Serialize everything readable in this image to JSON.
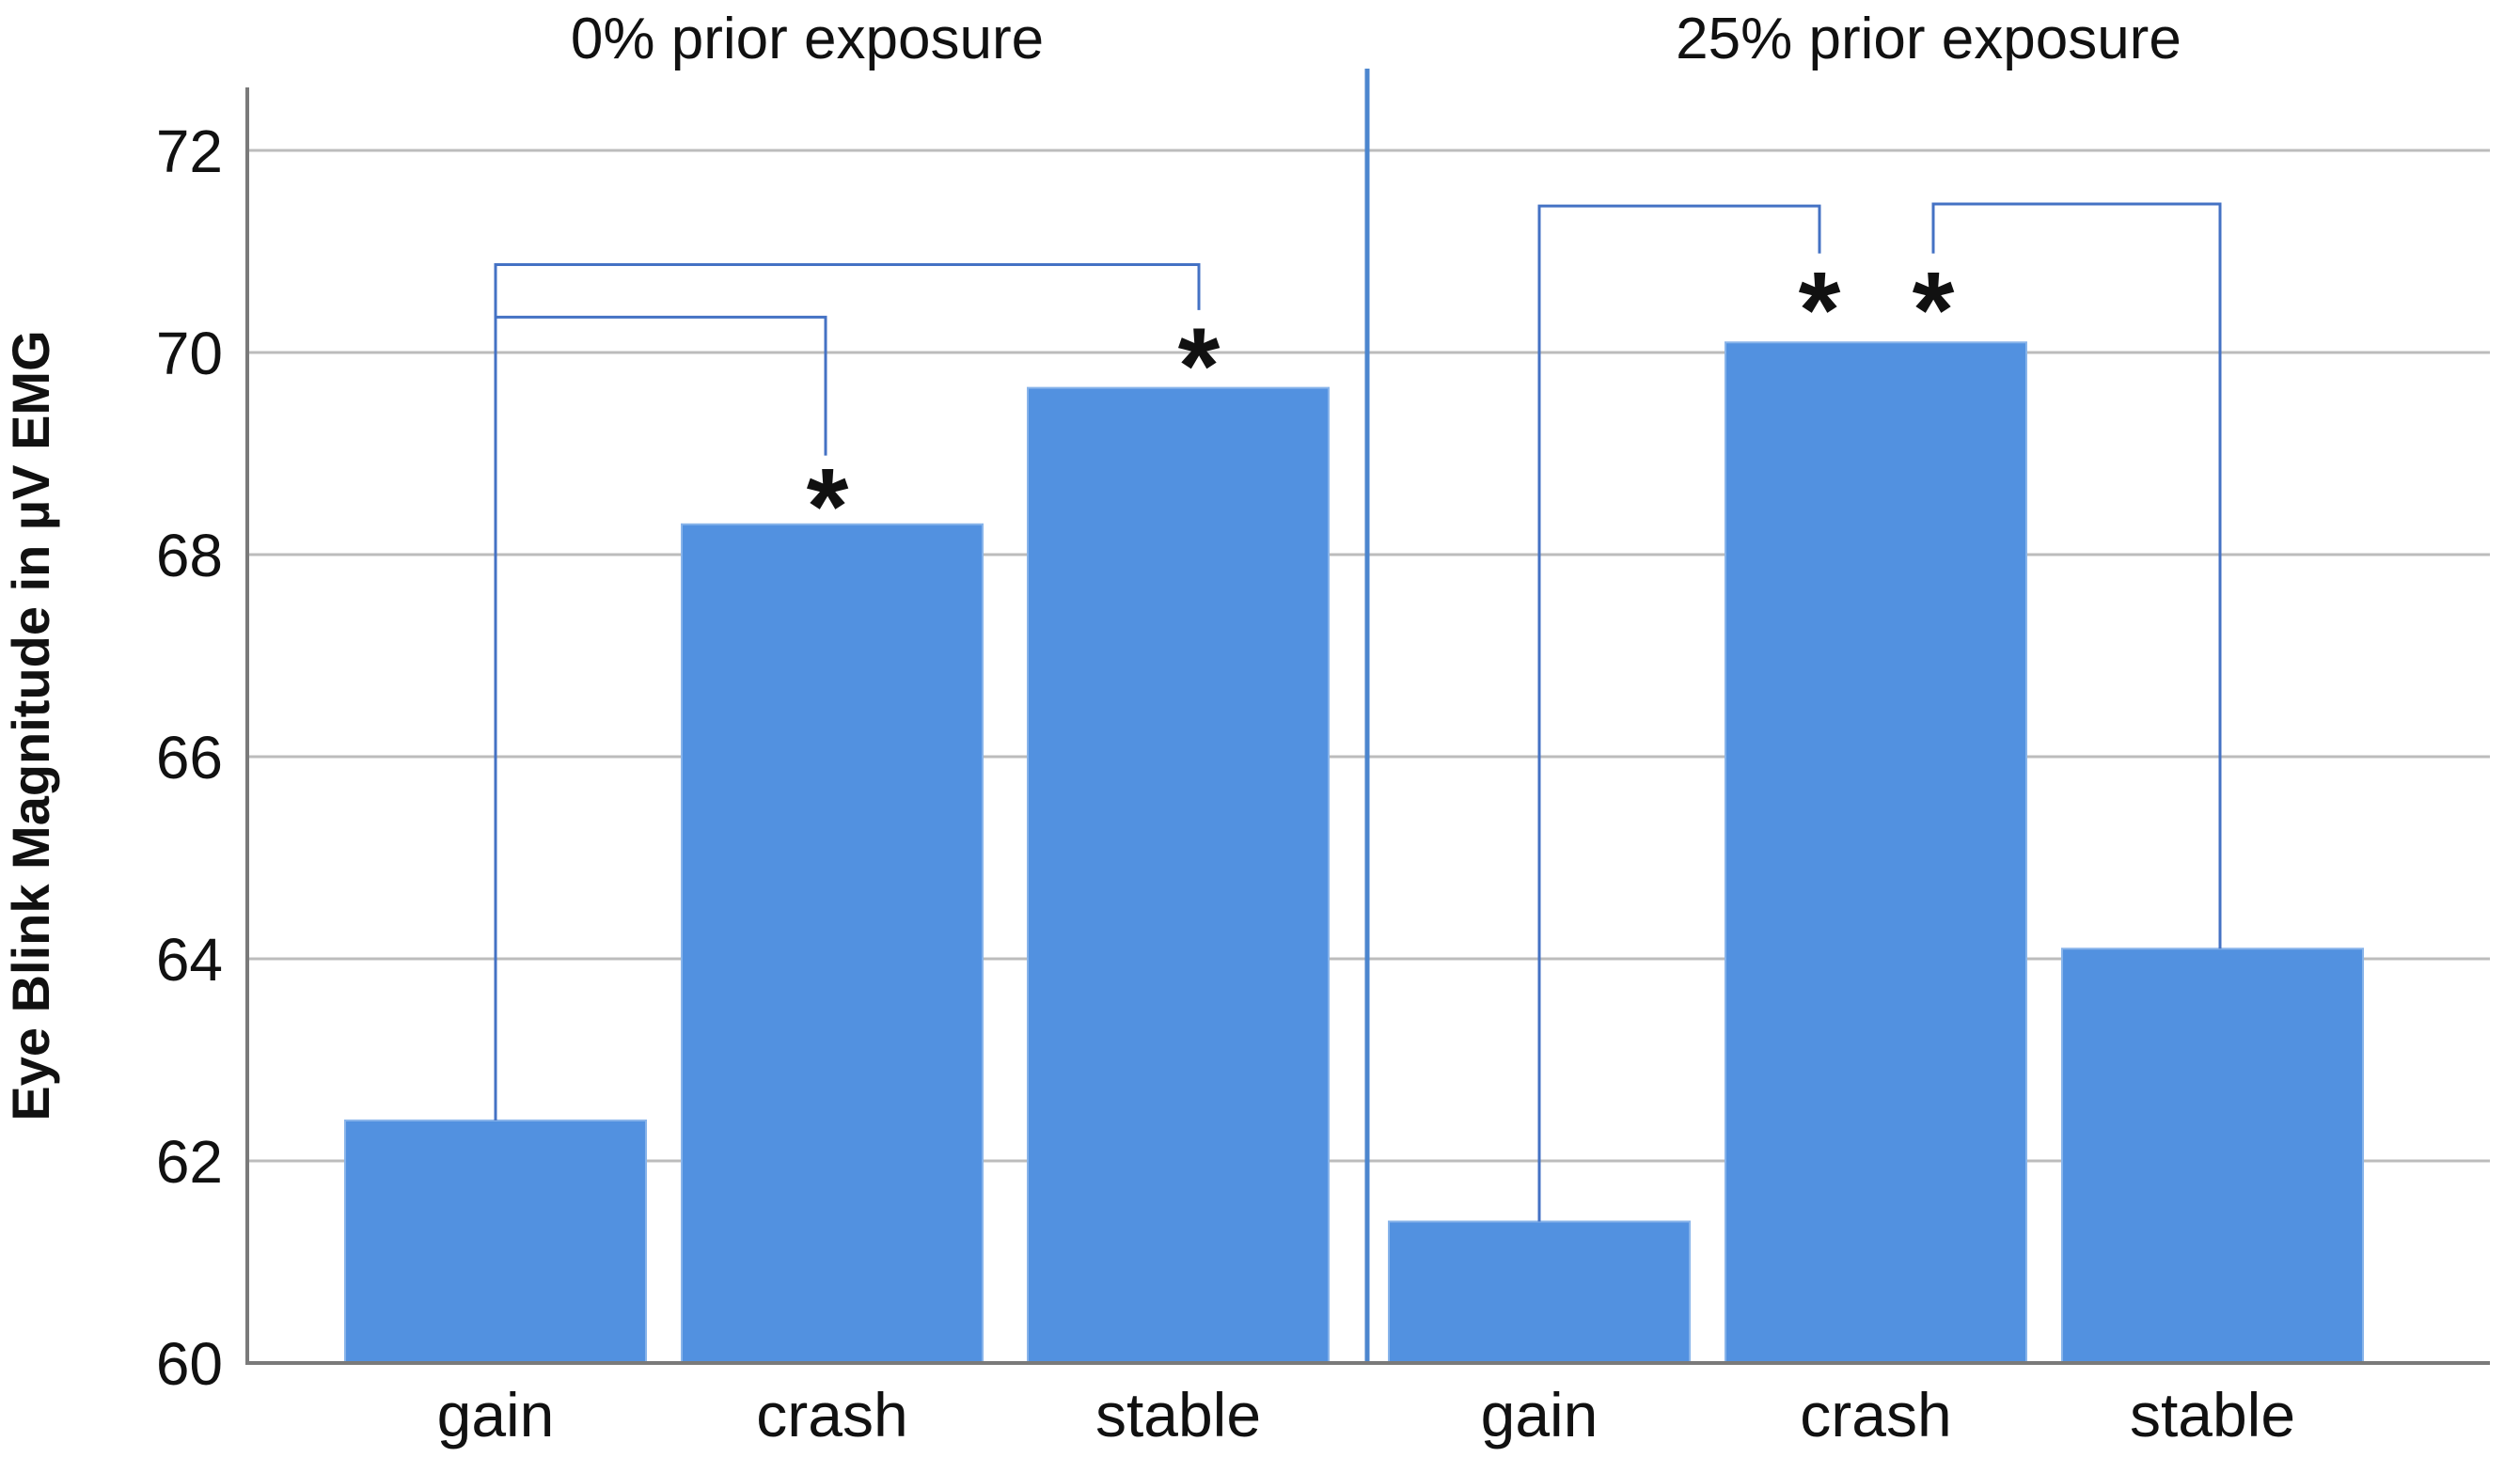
{
  "chart_data": {
    "type": "bar",
    "title": "",
    "xlabel": "",
    "ylabel": "Eye Blink Magnitude in µV EMG",
    "ylim": [
      60,
      72.6
    ],
    "yticks": [
      60,
      62,
      64,
      66,
      68,
      70,
      72
    ],
    "grid": "horizontal",
    "legend": "none",
    "asterisk_glyph": "*",
    "colors": {
      "bar_fill": "#5291E0",
      "bar_edge": "#88B4EA",
      "bracket_line": "#4472C4",
      "separator_line": "#4C86CE",
      "gridline": "#BCBCBC",
      "axis_line": "#7A7A7A",
      "text": "#111111"
    },
    "facets": [
      {
        "title": "0% prior exposure",
        "categories": [
          "gain",
          "crash",
          "stable"
        ],
        "values": [
          62.4,
          68.3,
          69.65
        ]
      },
      {
        "title": "25% prior exposure",
        "categories": [
          "gain",
          "crash",
          "stable"
        ],
        "values": [
          61.4,
          70.1,
          64.1
        ]
      }
    ],
    "significance": {
      "brackets": [
        {
          "y": 70.87,
          "x1": {
            "facet": 0,
            "bar": 0,
            "dx": 0
          },
          "leg1": "bar",
          "x2": {
            "facet": 0,
            "bar": 2,
            "dx": 22
          },
          "leg2": 70.42
        },
        {
          "y": 70.35,
          "x1": {
            "facet": 0,
            "bar": 0,
            "dx": 0
          },
          "leg1": "bar",
          "x2": {
            "facet": 0,
            "bar": 1,
            "dx": -7
          },
          "leg2": 68.98
        },
        {
          "y": 71.45,
          "x1": {
            "facet": 1,
            "bar": 0,
            "dx": 0
          },
          "leg1": "bar",
          "x2": {
            "facet": 1,
            "bar": 1,
            "dx": -60
          },
          "leg2": 70.98
        },
        {
          "y": 71.47,
          "x1": {
            "facet": 1,
            "bar": 1,
            "dx": 61
          },
          "leg1": 70.98,
          "x2": {
            "facet": 1,
            "bar": 2,
            "dx": 8
          },
          "leg2": "bar"
        }
      ],
      "asterisks": [
        {
          "facet": 0,
          "bar": 1,
          "dx": -5,
          "y": 68.63
        },
        {
          "facet": 0,
          "bar": 2,
          "dx": 22,
          "y": 70.02
        },
        {
          "facet": 1,
          "bar": 1,
          "dx": -60,
          "y": 70.57
        },
        {
          "facet": 1,
          "bar": 1,
          "dx": 61,
          "y": 70.57
        }
      ]
    }
  }
}
